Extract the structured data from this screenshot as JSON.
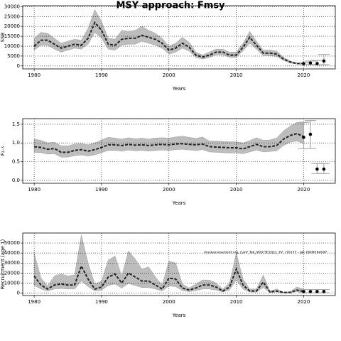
{
  "title": "MSY approach: Fmsy",
  "chart_data": [
    {
      "type": "band-line",
      "ylabel": "SSB",
      "xlabel": "Years",
      "xlim": [
        1978.3,
        2024.7
      ],
      "xticks": [
        1980,
        1990,
        2000,
        2010,
        2020
      ],
      "ylim": [
        -1500,
        30500
      ],
      "yticks": [
        0,
        5000,
        10000,
        15000,
        20000,
        25000,
        30000
      ],
      "grid": true,
      "band_color": "#bdbdbd",
      "line_color": "#222222",
      "point_color": "#000000",
      "errorbar_color": "#aaaaaa",
      "x": [
        1980,
        1981,
        1982,
        1983,
        1984,
        1985,
        1986,
        1987,
        1988,
        1989,
        1990,
        1991,
        1992,
        1993,
        1994,
        1995,
        1996,
        1997,
        1998,
        1999,
        2000,
        2001,
        2002,
        2003,
        2004,
        2005,
        2006,
        2007,
        2008,
        2009,
        2010,
        2011,
        2012,
        2013,
        2014,
        2015,
        2016,
        2017,
        2018,
        2019,
        2020
      ],
      "values": [
        10000,
        13000,
        13000,
        11000,
        9000,
        10000,
        11000,
        10500,
        14000,
        22000,
        18000,
        11000,
        10500,
        13500,
        14000,
        14000,
        15500,
        14500,
        13500,
        11500,
        8000,
        9000,
        11500,
        9500,
        5500,
        4500,
        5500,
        7000,
        7000,
        5500,
        5500,
        9500,
        14500,
        10500,
        6500,
        6500,
        6000,
        3500,
        2000,
        1200,
        1000
      ],
      "upper": [
        14000,
        17000,
        16500,
        14000,
        11500,
        12500,
        13500,
        13000,
        19000,
        28500,
        22500,
        14000,
        13500,
        18000,
        17500,
        18000,
        20000,
        18000,
        16500,
        14000,
        10000,
        11500,
        14500,
        12000,
        7000,
        5500,
        7000,
        8500,
        8500,
        7000,
        7000,
        11500,
        17500,
        12500,
        8000,
        8000,
        7500,
        4500,
        2500,
        1600,
        1400
      ],
      "lower": [
        8000,
        10500,
        10500,
        8500,
        7000,
        8000,
        9000,
        8500,
        11000,
        17000,
        14000,
        8500,
        8000,
        10500,
        11000,
        11000,
        12500,
        11500,
        10500,
        9000,
        6000,
        7000,
        9000,
        7500,
        4300,
        3500,
        4300,
        5600,
        5600,
        4400,
        4400,
        7600,
        11500,
        8500,
        5200,
        5200,
        4800,
        2800,
        1500,
        900,
        700
      ],
      "forecast": {
        "x": [
          2020,
          2021,
          2022,
          2023
        ],
        "values": [
          1200,
          1500,
          1200,
          2500
        ],
        "lower": [
          800,
          800,
          600,
          600
        ],
        "upper": [
          1600,
          2500,
          2800,
          5800
        ]
      }
    },
    {
      "type": "band-line",
      "ylabel": "F₂₋₅",
      "xlabel": "Years",
      "xlim": [
        1978.3,
        2024.7
      ],
      "xticks": [
        1980,
        1990,
        2000,
        2010,
        2020
      ],
      "ylim": [
        -0.08,
        1.65
      ],
      "yticks": [
        {
          "value": 0,
          "label": "0.0"
        },
        {
          "value": 0.5,
          "label": "0.5"
        },
        {
          "value": 1,
          "label": "1.0"
        },
        {
          "value": 1.5,
          "label": "1.5"
        }
      ],
      "grid": true,
      "band_color": "#bdbdbd",
      "line_color": "#222222",
      "point_color": "#000000",
      "errorbar_color": "#aaaaaa",
      "x": [
        1980,
        1981,
        1982,
        1983,
        1984,
        1985,
        1986,
        1987,
        1988,
        1989,
        1990,
        1991,
        1992,
        1993,
        1994,
        1995,
        1996,
        1997,
        1998,
        1999,
        2000,
        2001,
        2002,
        2003,
        2004,
        2005,
        2006,
        2007,
        2008,
        2009,
        2010,
        2011,
        2012,
        2013,
        2014,
        2015,
        2016,
        2017,
        2018,
        2019,
        2020
      ],
      "values": [
        0.9,
        0.88,
        0.83,
        0.85,
        0.75,
        0.75,
        0.8,
        0.82,
        0.78,
        0.82,
        0.88,
        0.95,
        0.95,
        0.93,
        0.96,
        0.94,
        0.95,
        0.93,
        0.95,
        0.96,
        0.95,
        0.97,
        0.98,
        0.96,
        0.95,
        0.97,
        0.9,
        0.89,
        0.88,
        0.87,
        0.87,
        0.84,
        0.9,
        0.96,
        0.9,
        0.9,
        0.93,
        1.1,
        1.2,
        1.25,
        1.17
      ],
      "upper": [
        1.1,
        1.07,
        1.0,
        1.02,
        0.92,
        0.92,
        0.97,
        0.98,
        0.95,
        1.0,
        1.08,
        1.15,
        1.13,
        1.1,
        1.14,
        1.11,
        1.13,
        1.1,
        1.13,
        1.14,
        1.13,
        1.16,
        1.18,
        1.15,
        1.12,
        1.16,
        1.05,
        1.05,
        1.04,
        1.03,
        1.03,
        1.0,
        1.06,
        1.14,
        1.07,
        1.08,
        1.13,
        1.32,
        1.45,
        1.55,
        1.55
      ],
      "lower": [
        0.75,
        0.74,
        0.7,
        0.71,
        0.62,
        0.62,
        0.66,
        0.68,
        0.65,
        0.68,
        0.74,
        0.8,
        0.8,
        0.78,
        0.81,
        0.79,
        0.8,
        0.78,
        0.8,
        0.81,
        0.8,
        0.82,
        0.83,
        0.81,
        0.8,
        0.82,
        0.76,
        0.75,
        0.74,
        0.73,
        0.73,
        0.71,
        0.76,
        0.81,
        0.76,
        0.77,
        0.79,
        0.93,
        1.02,
        1.05,
        0.98
      ],
      "forecast": {
        "x": [
          2020,
          2021,
          2022,
          2023
        ],
        "values": [
          1.15,
          1.23,
          0.3,
          0.3
        ],
        "lower": [
          0.85,
          0.85,
          0.18,
          0.18
        ],
        "upper": [
          1.55,
          1.6,
          0.45,
          0.45
        ]
      }
    },
    {
      "type": "band-line",
      "ylabel": "Recruitment (age 1)",
      "xlabel": "Years",
      "xlim": [
        1978.3,
        2024.7
      ],
      "xticks": [
        1980,
        1990,
        2000,
        2010,
        2020
      ],
      "ylim": [
        -2500,
        60000
      ],
      "yticks": [
        0,
        10000,
        20000,
        30000,
        40000,
        50000
      ],
      "grid": true,
      "band_color": "#bdbdbd",
      "line_color": "#222222",
      "point_color": "#000000",
      "errorbar_color": "#aaaaaa",
      "annotation": "stockassessment.org, Conf_Tek_WGCSE2021_YV, r10177 - git: 69d926d047",
      "x": [
        1980,
        1981,
        1982,
        1983,
        1984,
        1985,
        1986,
        1987,
        1988,
        1989,
        1990,
        1991,
        1992,
        1993,
        1994,
        1995,
        1996,
        1997,
        1998,
        1999,
        2000,
        2001,
        2002,
        2003,
        2004,
        2005,
        2006,
        2007,
        2008,
        2009,
        2010,
        2011,
        2012,
        2013,
        2014,
        2015,
        2016,
        2017,
        2018,
        2019,
        2020
      ],
      "values": [
        17000,
        8000,
        4000,
        8000,
        9000,
        8000,
        8000,
        27000,
        14000,
        4000,
        6000,
        16000,
        19000,
        10000,
        20000,
        16000,
        12000,
        12000,
        8000,
        4000,
        15000,
        14000,
        5000,
        3000,
        5000,
        8000,
        8000,
        6000,
        2000,
        6000,
        24000,
        8000,
        2000,
        2000,
        11000,
        1000,
        2000,
        500,
        500,
        3000,
        1500
      ],
      "upper": [
        40000,
        15000,
        7000,
        17000,
        19000,
        17000,
        18000,
        58000,
        30000,
        9000,
        12000,
        33000,
        37000,
        17000,
        42000,
        34000,
        24000,
        26000,
        16000,
        8000,
        32000,
        30000,
        9000,
        5000,
        9000,
        13000,
        13000,
        10000,
        4000,
        10000,
        40000,
        14000,
        4000,
        4000,
        18000,
        2000,
        4000,
        1000,
        1500,
        6000,
        4000
      ],
      "lower": [
        7500,
        4000,
        2000,
        4000,
        4500,
        4000,
        4000,
        12000,
        6500,
        2000,
        3000,
        7500,
        9000,
        5000,
        9500,
        7500,
        5500,
        5500,
        4000,
        2000,
        7000,
        6500,
        2500,
        1500,
        2500,
        4000,
        4000,
        3000,
        1000,
        3000,
        13000,
        4000,
        1000,
        1000,
        5500,
        500,
        1000,
        250,
        250,
        1500,
        600
      ],
      "forecast": {
        "x": [
          2020,
          2021,
          2022,
          2023
        ],
        "values": [
          1500,
          1500,
          1500,
          1500
        ],
        "lower": [
          300,
          300,
          300,
          300
        ],
        "upper": [
          3500,
          3500,
          3500,
          3500
        ]
      }
    }
  ]
}
